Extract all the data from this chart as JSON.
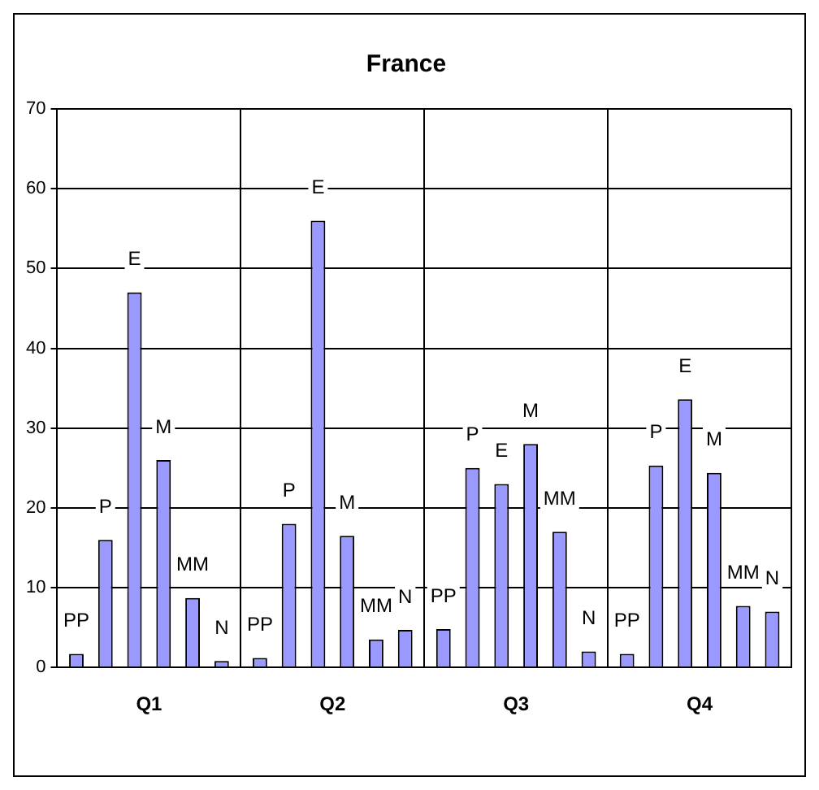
{
  "chart_data": {
    "type": "bar",
    "title": "France",
    "categories": [
      "Q1",
      "Q2",
      "Q3",
      "Q4"
    ],
    "series": [
      {
        "name": "PP",
        "color": "#9999ff",
        "values": [
          1.7,
          1.2,
          4.8,
          1.7
        ]
      },
      {
        "name": "P",
        "color": "#9999ff",
        "values": [
          16,
          18,
          25,
          25.3
        ]
      },
      {
        "name": "E",
        "color": "#9999ff",
        "values": [
          47,
          56,
          23,
          33.6
        ]
      },
      {
        "name": "M",
        "color": "#9999ff",
        "values": [
          26,
          16.5,
          28,
          24.4
        ]
      },
      {
        "name": "MM",
        "color": "#9999ff",
        "values": [
          8.7,
          3.5,
          17,
          7.7
        ]
      },
      {
        "name": "N",
        "color": "#9999ff",
        "values": [
          0.8,
          4.7,
          2,
          7
        ]
      }
    ],
    "ylim": [
      0,
      70
    ],
    "yticks": [
      0,
      10,
      20,
      30,
      40,
      50,
      60,
      70
    ],
    "grid": true,
    "legend": false
  }
}
